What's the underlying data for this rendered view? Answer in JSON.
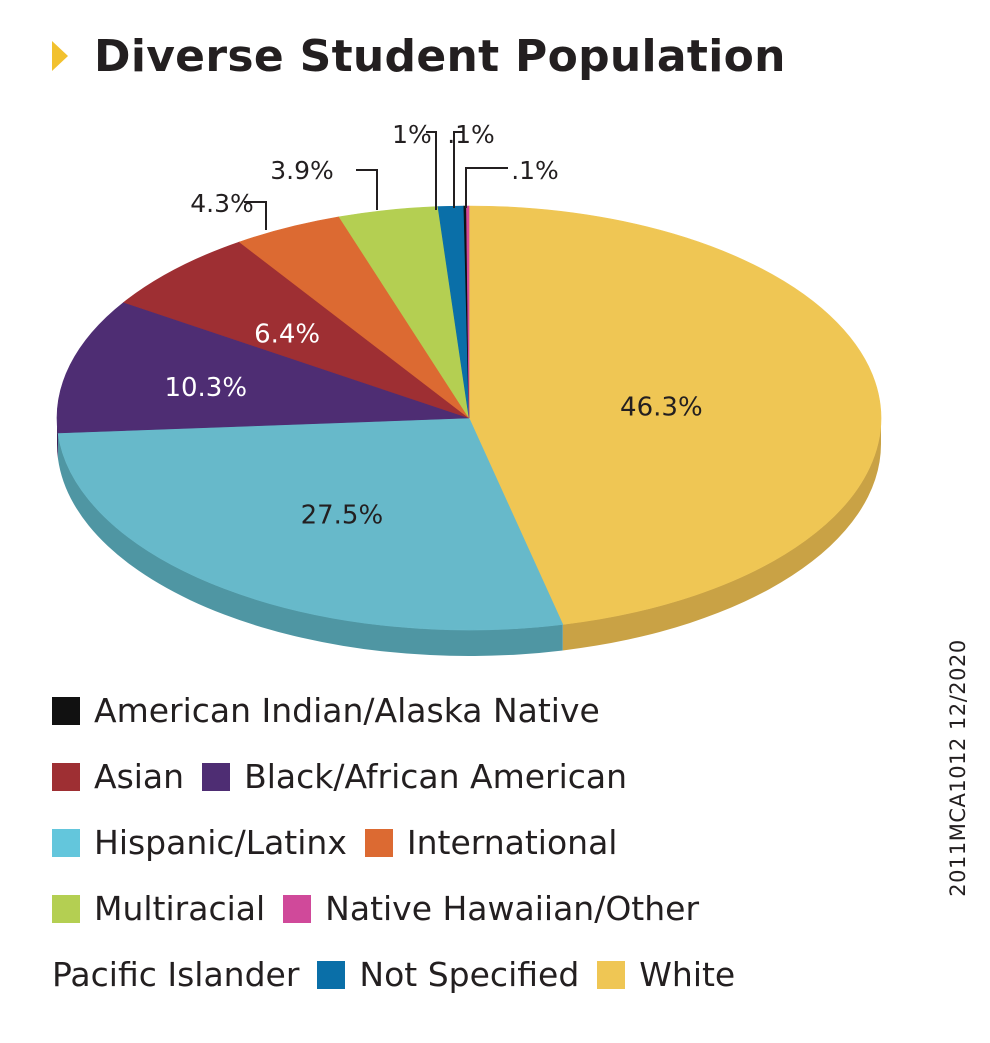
{
  "header": {
    "title": "Diverse Student Population"
  },
  "code_label": "2011MCA1012  12/2020",
  "legend_lines": [
    [
      {
        "label": "American Indian/Alaska Native",
        "color": "#111111"
      }
    ],
    [
      {
        "label": "Asian",
        "color": "#9e2f33"
      },
      {
        "label": "Black/African American",
        "color": "#4e2d73"
      }
    ],
    [
      {
        "label": "Hispanic/Latinx",
        "color": "#63c6dc"
      },
      {
        "label": "International",
        "color": "#dc6a32"
      }
    ],
    [
      {
        "label": "Multiracial",
        "color": "#b4cf52"
      },
      {
        "label": "Native Hawaiian/Other",
        "color": "#d0499a"
      }
    ],
    [
      {
        "text": "Pacific Islander"
      },
      {
        "label": "Not Specified",
        "color": "#0a6fa8"
      },
      {
        "label": "White",
        "color": "#efc654"
      }
    ]
  ],
  "chart_data": {
    "type": "pie",
    "title": "Diverse Student Population",
    "slices": [
      {
        "name": "White",
        "value": 46.3,
        "label": "46.3%",
        "color": "#efc654",
        "side": "#c9a245"
      },
      {
        "name": "Hispanic/Latinx",
        "value": 27.5,
        "label": "27.5%",
        "color": "#67b9ca",
        "side": "#4f96a3"
      },
      {
        "name": "Black/African American",
        "value": 10.3,
        "label": "10.3%",
        "color": "#4e2d73",
        "side": "#3b2257"
      },
      {
        "name": "Asian",
        "value": 6.4,
        "label": "6.4%",
        "color": "#9e2f33",
        "side": "#7a2428"
      },
      {
        "name": "International",
        "value": 4.3,
        "label": "4.3%",
        "color": "#dc6a32",
        "side": "#b05428"
      },
      {
        "name": "Multiracial",
        "value": 3.9,
        "label": "3.9%",
        "color": "#b4cf52",
        "side": "#8fa641"
      },
      {
        "name": "Not Specified",
        "value": 1.0,
        "label": "1%",
        "color": "#0a6fa8",
        "side": "#085784"
      },
      {
        "name": "American Indian/Alaska Native",
        "value": 0.1,
        "label": ".1%",
        "color": "#111111",
        "side": "#000000"
      },
      {
        "name": "Native Hawaiian/Other Pacific Islander",
        "value": 0.1,
        "label": ".1%",
        "color": "#d0499a",
        "side": "#a33a79"
      }
    ]
  }
}
